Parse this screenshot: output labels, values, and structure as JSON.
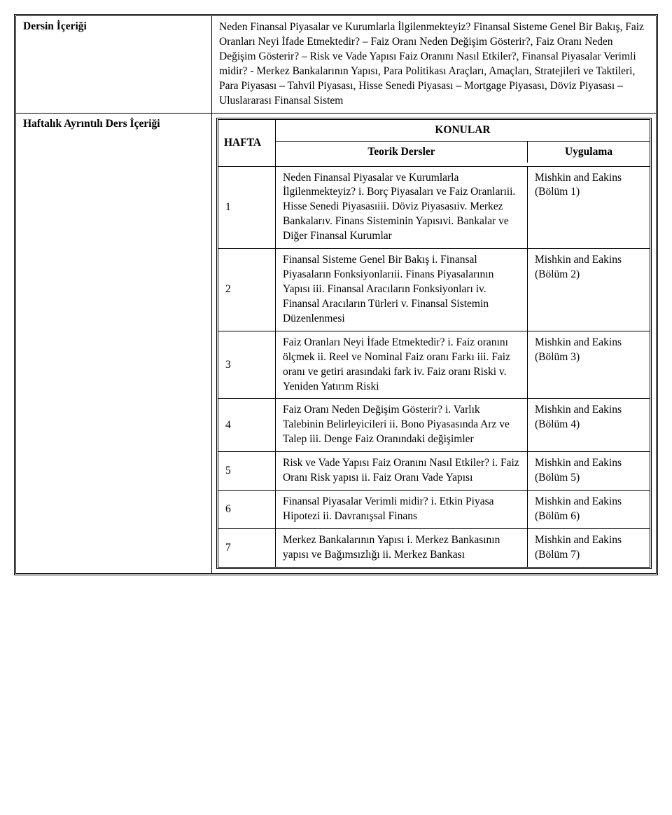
{
  "sections": {
    "dersin_icerigi": {
      "label": "Dersin İçeriği",
      "content": "Neden Finansal Piyasalar ve Kurumlarla İlgilenmekteyiz? Finansal Sisteme Genel Bir Bakış, Faiz Oranları Neyi İfade Etmektedir? – Faiz Oranı Neden Değişim Gösterir?, Faiz Oranı Neden Değişim Gösterir? – Risk ve Vade Yapısı Faiz Oranını Nasıl Etkiler?, Finansal Piyasalar Verimli midir? - Merkez Bankalarının Yapısı, Para Politikası Araçları, Amaçları, Stratejileri ve Taktileri, Para Piyasası – Tahvil Piyasası, Hisse Senedi Piyasası – Mortgage Piyasası, Döviz Piyasası – Uluslararası Finansal Sistem"
    },
    "haftalik": {
      "label": "Haftalık Ayrıntılı Ders İçeriği",
      "table": {
        "hafta_label": "HAFTA",
        "konular_label": "KONULAR",
        "teorik_label": "Teorik Dersler",
        "uygulama_label": "Uygulama",
        "weeks": [
          {
            "num": "1",
            "topic": "Neden Finansal Piyasalar ve Kurumlarla İlgilenmekteyiz? i. Borç Piyasaları ve Faiz Oranlarıii. Hisse Senedi Piyasasıiii. Döviz Piyasasıiv. Merkez Bankalarıv. Finans Sisteminin Yapısıvi. Bankalar ve Diğer Finansal Kurumlar",
            "app": "Mishkin and Eakins (Bölüm 1)"
          },
          {
            "num": "2",
            "topic": "Finansal Sisteme Genel Bir Bakış i. Finansal Piyasaların Fonksiyonlarıii. Finans Piyasalarının Yapısı iii. Finansal Aracıların Fonksiyonları iv. Finansal Aracıların Türleri v. Finansal Sistemin Düzenlenmesi",
            "app": "Mishkin and Eakins (Bölüm 2)"
          },
          {
            "num": "3",
            "topic": "Faiz Oranları Neyi İfade Etmektedir? i. Faiz oranını ölçmek ii. Reel ve Nominal Faiz oranı Farkı iii. Faiz oranı ve getiri arasındaki fark iv. Faiz oranı Riski v. Yeniden Yatırım Riski",
            "app": "Mishkin and Eakins (Bölüm 3)"
          },
          {
            "num": "4",
            "topic": "Faiz Oranı Neden Değişim Gösterir? i. Varlık Talebinin Belirleyicileri ii. Bono Piyasasında Arz ve Talep iii. Denge Faiz Oranındaki değişimler",
            "app": "Mishkin and Eakins (Bölüm 4)"
          },
          {
            "num": "5",
            "topic": "Risk ve Vade Yapısı Faiz Oranını Nasıl Etkiler? i. Faiz Oranı Risk yapısı ii. Faiz Oranı Vade Yapısı",
            "app": "Mishkin and Eakins (Bölüm 5)"
          },
          {
            "num": "6",
            "topic": "Finansal Piyasalar Verimli midir? i. Etkin Piyasa Hipotezi ii. Davranışsal Finans",
            "app": "Mishkin and Eakins (Bölüm 6)"
          },
          {
            "num": "7",
            "topic": "Merkez Bankalarının Yapısı i. Merkez Bankasının yapısı ve Bağımsızlığı ii. Merkez Bankası",
            "app": "Mishkin and Eakins (Bölüm 7)"
          }
        ]
      }
    }
  }
}
